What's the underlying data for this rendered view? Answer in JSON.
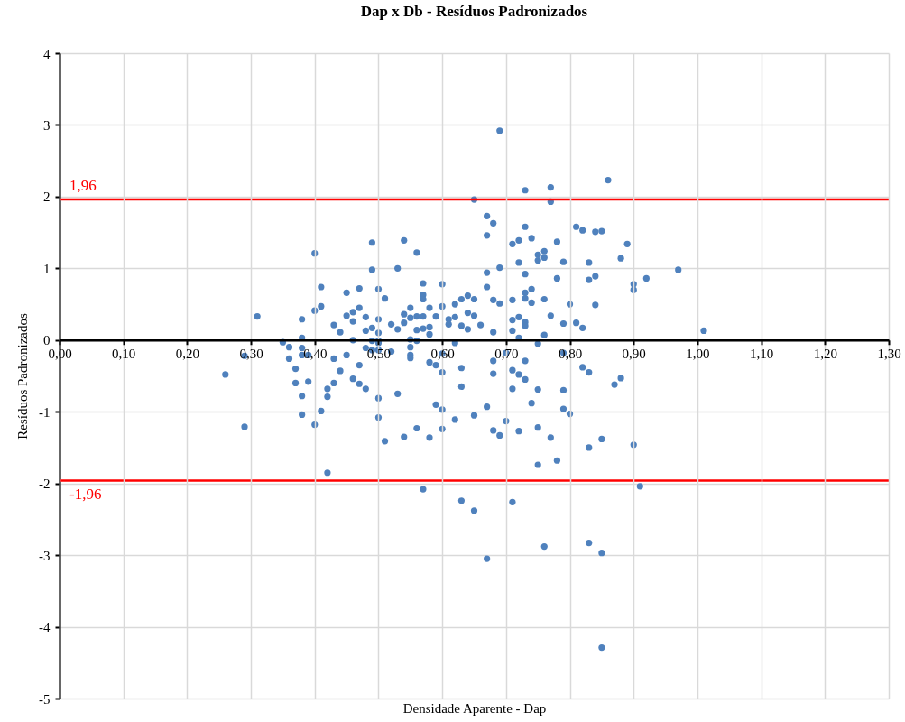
{
  "chart_data": {
    "type": "scatter",
    "title": "Dap x Db - Resíduos Padronizados",
    "xlabel": "Densidade Aparente - Dap",
    "ylabel": "Resíduos Padronizados",
    "xlim": [
      0,
      1.3
    ],
    "ylim": [
      -5,
      4
    ],
    "xticks": [
      {
        "value": 0,
        "label": "0,00"
      },
      {
        "value": 0.1,
        "label": "0,10"
      },
      {
        "value": 0.2,
        "label": "0,20"
      },
      {
        "value": 0.3,
        "label": "0,30"
      },
      {
        "value": 0.4,
        "label": "0,40"
      },
      {
        "value": 0.5,
        "label": "0,50"
      },
      {
        "value": 0.6,
        "label": "0,60"
      },
      {
        "value": 0.7,
        "label": "0,70"
      },
      {
        "value": 0.8,
        "label": "0,80"
      },
      {
        "value": 0.9,
        "label": "0,90"
      },
      {
        "value": 1.0,
        "label": "1,00"
      },
      {
        "value": 1.1,
        "label": "1,10"
      },
      {
        "value": 1.2,
        "label": "1,20"
      },
      {
        "value": 1.3,
        "label": "1,30"
      }
    ],
    "yticks": [
      -5,
      -4,
      -3,
      -2,
      -1,
      0,
      1,
      2,
      3,
      4
    ],
    "grid": true,
    "marker": "circle",
    "ref_lines": [
      {
        "axis": "y",
        "value": 1.96,
        "label": "1,96",
        "color": "#ff0000"
      },
      {
        "axis": "y",
        "value": -1.96,
        "label": "-1,96",
        "color": "#ff0000"
      }
    ],
    "series": [
      {
        "color": "#4f81bd",
        "x": [
          0.31,
          0.4,
          0.41,
          0.41,
          0.4,
          0.38,
          0.38,
          0.35,
          0.36,
          0.38,
          0.43,
          0.44,
          0.45,
          0.45,
          0.46,
          0.46,
          0.47,
          0.47,
          0.48,
          0.48,
          0.49,
          0.49,
          0.49,
          0.5,
          0.5,
          0.5,
          0.5,
          0.49,
          0.46,
          0.51,
          0.52,
          0.53,
          0.53,
          0.54,
          0.54,
          0.54,
          0.55,
          0.55,
          0.56,
          0.56,
          0.56,
          0.56,
          0.55,
          0.57,
          0.57,
          0.57,
          0.57,
          0.57,
          0.58,
          0.58,
          0.58,
          0.59,
          0.6,
          0.6,
          0.61,
          0.61,
          0.62,
          0.62,
          0.62,
          0.63,
          0.63,
          0.64,
          0.64,
          0.64,
          0.65,
          0.65,
          0.66,
          0.67,
          0.67,
          0.68,
          0.67,
          0.67,
          0.69,
          0.68,
          0.69,
          0.68,
          0.71,
          0.72,
          0.73,
          0.74,
          0.72,
          0.73,
          0.71,
          0.73,
          0.74,
          0.73,
          0.74,
          0.71,
          0.72,
          0.73,
          0.73,
          0.71,
          0.72,
          0.75,
          0.76,
          0.75,
          0.76,
          0.76,
          0.77,
          0.76,
          0.75,
          0.78,
          0.78,
          0.69,
          0.65,
          0.73,
          0.77,
          0.77,
          0.86,
          0.81,
          0.82,
          0.84,
          0.85,
          0.89,
          0.79,
          0.83,
          0.88,
          0.97,
          0.83,
          0.84,
          0.9,
          0.9,
          0.92,
          0.8,
          0.84,
          0.79,
          0.81,
          0.82,
          1.01,
          0.26,
          0.29,
          0.29,
          0.36,
          0.38,
          0.37,
          0.37,
          0.38,
          0.38,
          0.39,
          0.39,
          0.4,
          0.41,
          0.42,
          0.42,
          0.43,
          0.43,
          0.44,
          0.45,
          0.46,
          0.47,
          0.47,
          0.48,
          0.48,
          0.49,
          0.5,
          0.5,
          0.5,
          0.5,
          0.51,
          0.52,
          0.53,
          0.54,
          0.55,
          0.55,
          0.55,
          0.56,
          0.57,
          0.58,
          0.58,
          0.59,
          0.59,
          0.6,
          0.6,
          0.6,
          0.6,
          0.62,
          0.63,
          0.63,
          0.65,
          0.67,
          0.68,
          0.68,
          0.68,
          0.69,
          0.7,
          0.7,
          0.71,
          0.71,
          0.72,
          0.72,
          0.73,
          0.73,
          0.74,
          0.75,
          0.75,
          0.75,
          0.77,
          0.78,
          0.42,
          0.79,
          0.82,
          0.83,
          0.87,
          0.88,
          0.79,
          0.79,
          0.8,
          0.83,
          0.85,
          0.9,
          0.91,
          0.63,
          0.65,
          0.71,
          0.67,
          0.76,
          0.83,
          0.85,
          0.85
        ],
        "values": [
          0.33,
          1.21,
          0.74,
          0.47,
          0.41,
          0.29,
          0.03,
          -0.03,
          -0.1,
          -0.11,
          0.21,
          0.11,
          0.66,
          0.34,
          0.39,
          0.26,
          0.72,
          0.45,
          0.32,
          0.13,
          1.36,
          0.98,
          0.17,
          0.71,
          0.29,
          0.1,
          -0.01,
          -0.01,
          0.0,
          0.58,
          0.22,
          1.0,
          0.15,
          1.39,
          0.36,
          0.24,
          0.45,
          0.31,
          1.22,
          0.33,
          0.14,
          -0.01,
          0.01,
          0.79,
          0.63,
          0.57,
          0.33,
          0.16,
          0.45,
          0.18,
          0.08,
          0.33,
          0.78,
          0.47,
          0.29,
          0.22,
          0.5,
          0.32,
          -0.04,
          0.57,
          0.2,
          0.62,
          0.38,
          0.15,
          0.57,
          0.34,
          0.21,
          1.73,
          1.46,
          1.63,
          0.94,
          0.74,
          1.01,
          0.56,
          0.51,
          0.11,
          1.34,
          1.39,
          1.58,
          1.42,
          1.08,
          0.92,
          0.56,
          0.66,
          0.71,
          0.58,
          0.52,
          0.28,
          0.32,
          0.25,
          0.2,
          0.13,
          0.03,
          1.19,
          1.24,
          1.11,
          1.15,
          0.57,
          0.34,
          0.07,
          -0.05,
          1.37,
          0.86,
          2.92,
          1.96,
          2.09,
          2.13,
          1.93,
          2.23,
          1.58,
          1.53,
          1.51,
          1.52,
          1.34,
          1.09,
          1.08,
          1.14,
          0.98,
          0.84,
          0.89,
          0.78,
          0.7,
          0.86,
          0.5,
          0.49,
          0.23,
          0.24,
          0.17,
          0.13,
          -0.48,
          -0.22,
          -1.21,
          -0.26,
          -0.21,
          -0.4,
          -0.6,
          -0.78,
          -1.04,
          -0.58,
          -0.21,
          -1.18,
          -0.99,
          -0.68,
          -0.79,
          -0.6,
          -0.26,
          -0.43,
          -0.21,
          -0.54,
          -0.35,
          -0.61,
          -0.68,
          -0.11,
          -0.14,
          -0.04,
          -0.14,
          -0.81,
          -1.08,
          -1.41,
          -0.16,
          -0.75,
          -1.35,
          -0.1,
          -0.21,
          -0.25,
          -1.23,
          -2.08,
          -0.31,
          -1.36,
          -0.35,
          -0.9,
          -0.19,
          -0.45,
          -0.97,
          -1.24,
          -1.11,
          -0.39,
          -0.65,
          -1.05,
          -0.93,
          -0.29,
          -0.47,
          -1.26,
          -1.33,
          -0.18,
          -1.13,
          -0.42,
          -0.68,
          -0.48,
          -1.27,
          -0.29,
          -0.55,
          -0.88,
          -0.69,
          -1.22,
          -1.74,
          -1.36,
          -1.68,
          -1.85,
          -0.18,
          -0.38,
          -0.45,
          -0.62,
          -0.53,
          -0.7,
          -0.96,
          -1.03,
          -1.5,
          -1.38,
          -1.46,
          -2.04,
          -2.24,
          -2.38,
          -2.26,
          -3.05,
          -2.88,
          -2.83,
          -2.97,
          -4.29
        ]
      }
    ]
  }
}
